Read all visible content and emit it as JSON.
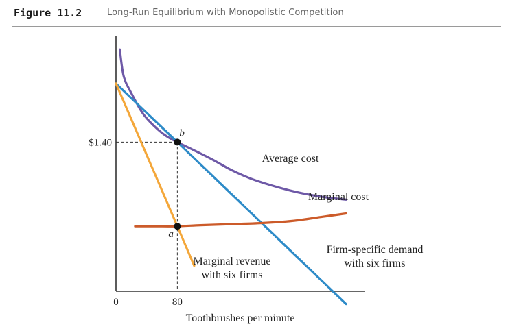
{
  "figure": {
    "number": "Figure 11.2",
    "title": "Long-Run Equilibrium with Monopolistic Competition"
  },
  "chart_data": {
    "type": "line",
    "title": "Long-Run Equilibrium with Monopolistic Competition",
    "xlabel": "Toothbrushes per minute",
    "ylabel": "",
    "x_ticks": [
      "0",
      "80"
    ],
    "y_ticks": [
      "$1.40"
    ],
    "xlim": [
      0,
      325
    ],
    "ylim": [
      0.0,
      2.4
    ],
    "grid": false,
    "legend": "none",
    "series": [
      {
        "name": "Average cost",
        "color": "#6e59a7",
        "x": [
          5,
          10,
          20,
          35,
          50,
          65,
          80,
          100,
          125,
          150,
          175,
          200,
          225,
          250,
          275,
          300
        ],
        "values": [
          2.27,
          2.02,
          1.86,
          1.67,
          1.55,
          1.46,
          1.4,
          1.33,
          1.24,
          1.14,
          1.06,
          1.0,
          0.95,
          0.91,
          0.88,
          0.86
        ]
      },
      {
        "name": "Marginal cost",
        "color": "#cc5b2a",
        "x": [
          25,
          60,
          80,
          110,
          150,
          190,
          230,
          270,
          300
        ],
        "values": [
          0.61,
          0.61,
          0.61,
          0.62,
          0.63,
          0.64,
          0.66,
          0.7,
          0.73
        ]
      },
      {
        "name": "Firm-specific demand with six firms",
        "color": "#2e8bc8",
        "x": [
          0,
          80,
          300
        ],
        "values": [
          1.95,
          1.4,
          -0.12
        ]
      },
      {
        "name": "Marginal revenue with six firms",
        "color": "#f4a73a",
        "x": [
          0,
          80,
          102
        ],
        "values": [
          1.95,
          0.61,
          0.24
        ]
      }
    ],
    "points": [
      {
        "label": "b",
        "x": 80,
        "y": 1.4
      },
      {
        "label": "a",
        "x": 80,
        "y": 0.61
      }
    ],
    "annotations": {
      "average_cost": "Average cost",
      "marginal_cost": "Marginal cost",
      "demand_line1": "Firm-specific demand",
      "demand_line2": "with six firms",
      "mr_line1": "Marginal revenue",
      "mr_line2": "with six firms"
    }
  }
}
